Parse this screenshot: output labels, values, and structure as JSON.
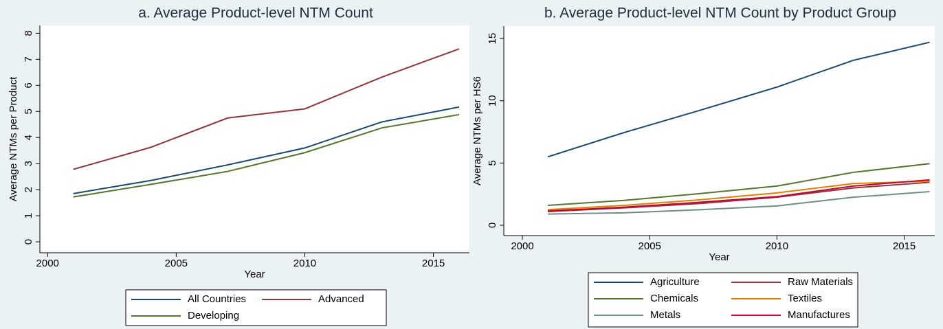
{
  "chart_data": [
    {
      "type": "line",
      "title": "a. Average Product-level NTM Count",
      "x_label": "Year",
      "y_label": "Average NTMs per Product",
      "x": [
        2001,
        2004,
        2007,
        2010,
        2013,
        2016
      ],
      "series": [
        {
          "name": "All Countries",
          "color": "#1a476f",
          "values": [
            1.85,
            2.35,
            2.95,
            3.6,
            4.6,
            5.17
          ]
        },
        {
          "name": "Advanced",
          "color": "#90353b",
          "values": [
            2.78,
            3.62,
            4.75,
            5.1,
            6.32,
            7.4
          ]
        },
        {
          "name": "Developing",
          "color": "#55752f",
          "values": [
            1.72,
            2.2,
            2.7,
            3.42,
            4.37,
            4.88
          ]
        }
      ],
      "xlim": [
        1999.7,
        2016.4
      ],
      "xticks": [
        2000,
        2005,
        2010,
        2015
      ],
      "ylim": [
        -0.42,
        8.3
      ],
      "yticks": [
        0,
        1,
        2,
        3,
        4,
        5,
        6,
        7,
        8
      ],
      "grid": false
    },
    {
      "type": "line",
      "title": "b. Average Product-level NTM Count by Product Group",
      "x_label": "Year",
      "y_label": "Average NTMs per HS6",
      "x": [
        2001,
        2004,
        2007,
        2010,
        2013,
        2016
      ],
      "series": [
        {
          "name": "Agriculture",
          "color": "#1a476f",
          "values": [
            5.5,
            7.45,
            9.25,
            11.1,
            13.25,
            14.7
          ]
        },
        {
          "name": "Chemicals",
          "color": "#55752f",
          "values": [
            1.6,
            2.0,
            2.55,
            3.15,
            4.25,
            4.95
          ]
        },
        {
          "name": "Metals",
          "color": "#6e8e84",
          "values": [
            0.9,
            1.0,
            1.25,
            1.55,
            2.25,
            2.7
          ]
        },
        {
          "name": "Raw Materials",
          "color": "#90353b",
          "values": [
            1.1,
            1.4,
            1.75,
            2.25,
            3.0,
            3.45
          ]
        },
        {
          "name": "Textiles",
          "color": "#e37e00",
          "values": [
            1.25,
            1.6,
            2.05,
            2.6,
            3.35,
            3.55
          ]
        },
        {
          "name": "Manufactures",
          "color": "#c10534",
          "values": [
            1.15,
            1.45,
            1.85,
            2.3,
            3.15,
            3.65
          ]
        }
      ],
      "xlim": [
        1999.27,
        2016.2
      ],
      "xticks": [
        2000,
        2005,
        2010,
        2015
      ],
      "ylim": [
        -0.83,
        16.0
      ],
      "yticks": [
        0,
        5,
        10,
        15
      ],
      "grid": false
    }
  ]
}
